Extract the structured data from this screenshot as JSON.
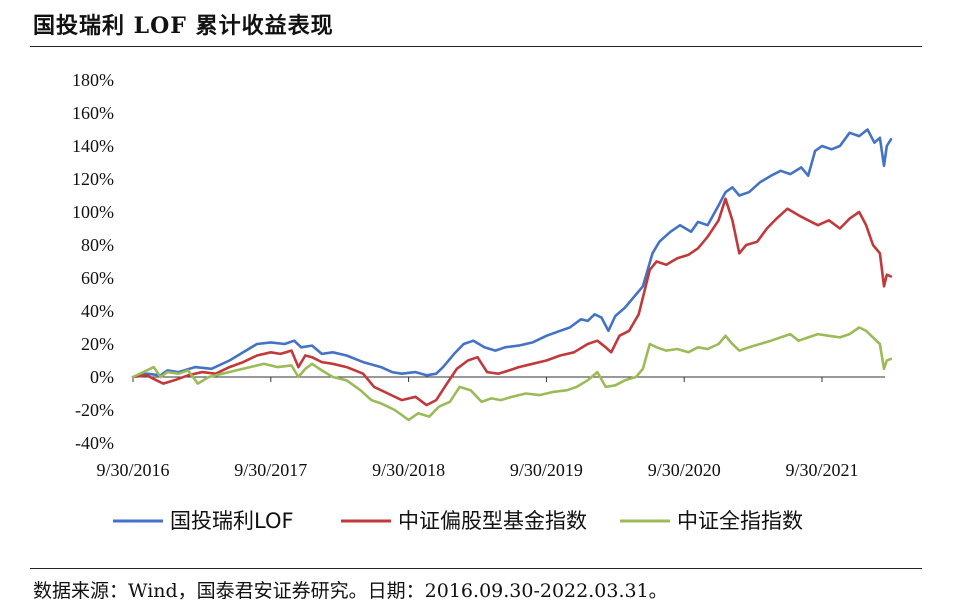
{
  "title": "国投瑞利 LOF 累计收益表现",
  "source_note": "数据来源：Wind，国泰君安证券研究。日期：2016.09.30-2022.03.31。",
  "chart_data": {
    "type": "line",
    "y_ticks": [
      "180%",
      "160%",
      "140%",
      "120%",
      "100%",
      "80%",
      "60%",
      "40%",
      "20%",
      "0%",
      "-20%",
      "-40%"
    ],
    "ylim": [
      -40,
      180
    ],
    "x_ticks": [
      "9/30/2016",
      "9/30/2017",
      "9/30/2018",
      "9/30/2019",
      "9/30/2020",
      "9/30/2021"
    ],
    "x_tick_years": [
      2016.75,
      2017.75,
      2018.75,
      2019.75,
      2020.75,
      2021.75
    ],
    "xlim": [
      2016.75,
      2022.25
    ],
    "grid": false,
    "legend_position": "bottom",
    "series": [
      {
        "name": "国投瑞利LOF",
        "color": "#4472C4",
        "points": [
          [
            2016.75,
            0
          ],
          [
            2016.85,
            2
          ],
          [
            2016.95,
            1
          ],
          [
            2017.0,
            4
          ],
          [
            2017.08,
            3
          ],
          [
            2017.2,
            6
          ],
          [
            2017.32,
            5
          ],
          [
            2017.45,
            10
          ],
          [
            2017.55,
            15
          ],
          [
            2017.65,
            20
          ],
          [
            2017.75,
            21
          ],
          [
            2017.85,
            20
          ],
          [
            2017.92,
            22
          ],
          [
            2017.97,
            18
          ],
          [
            2018.05,
            19
          ],
          [
            2018.12,
            14
          ],
          [
            2018.2,
            15
          ],
          [
            2018.3,
            13
          ],
          [
            2018.42,
            9
          ],
          [
            2018.55,
            6
          ],
          [
            2018.63,
            3
          ],
          [
            2018.7,
            2
          ],
          [
            2018.8,
            3
          ],
          [
            2018.88,
            1
          ],
          [
            2018.95,
            2
          ],
          [
            2019.0,
            6
          ],
          [
            2019.08,
            14
          ],
          [
            2019.15,
            20
          ],
          [
            2019.22,
            22
          ],
          [
            2019.3,
            18
          ],
          [
            2019.38,
            16
          ],
          [
            2019.45,
            18
          ],
          [
            2019.55,
            19
          ],
          [
            2019.65,
            21
          ],
          [
            2019.75,
            25
          ],
          [
            2019.85,
            28
          ],
          [
            2019.92,
            30
          ],
          [
            2020.0,
            35
          ],
          [
            2020.05,
            34
          ],
          [
            2020.1,
            38
          ],
          [
            2020.15,
            36
          ],
          [
            2020.2,
            28
          ],
          [
            2020.25,
            37
          ],
          [
            2020.32,
            42
          ],
          [
            2020.4,
            50
          ],
          [
            2020.45,
            55
          ],
          [
            2020.52,
            75
          ],
          [
            2020.57,
            82
          ],
          [
            2020.65,
            88
          ],
          [
            2020.72,
            92
          ],
          [
            2020.8,
            88
          ],
          [
            2020.85,
            94
          ],
          [
            2020.92,
            92
          ],
          [
            2021.0,
            104
          ],
          [
            2021.05,
            112
          ],
          [
            2021.1,
            115
          ],
          [
            2021.15,
            110
          ],
          [
            2021.22,
            112
          ],
          [
            2021.3,
            118
          ],
          [
            2021.38,
            122
          ],
          [
            2021.45,
            125
          ],
          [
            2021.52,
            123
          ],
          [
            2021.6,
            127
          ],
          [
            2021.65,
            122
          ],
          [
            2021.7,
            137
          ],
          [
            2021.75,
            140
          ],
          [
            2021.82,
            138
          ],
          [
            2021.88,
            140
          ],
          [
            2021.95,
            148
          ],
          [
            2022.02,
            146
          ],
          [
            2022.08,
            150
          ],
          [
            2022.13,
            142
          ],
          [
            2022.17,
            145
          ],
          [
            2022.2,
            128
          ],
          [
            2022.22,
            140
          ],
          [
            2022.25,
            144
          ]
        ]
      },
      {
        "name": "中证偏股型基金指数",
        "color": "#C0393B",
        "points": [
          [
            2016.75,
            0
          ],
          [
            2016.85,
            1
          ],
          [
            2016.92,
            -2
          ],
          [
            2016.97,
            -4
          ],
          [
            2017.05,
            -2
          ],
          [
            2017.15,
            1
          ],
          [
            2017.25,
            3
          ],
          [
            2017.35,
            2
          ],
          [
            2017.45,
            6
          ],
          [
            2017.55,
            9
          ],
          [
            2017.65,
            13
          ],
          [
            2017.75,
            15
          ],
          [
            2017.82,
            14
          ],
          [
            2017.9,
            16
          ],
          [
            2017.95,
            6
          ],
          [
            2018.0,
            13
          ],
          [
            2018.05,
            12
          ],
          [
            2018.12,
            9
          ],
          [
            2018.2,
            8
          ],
          [
            2018.3,
            6
          ],
          [
            2018.42,
            2
          ],
          [
            2018.5,
            -6
          ],
          [
            2018.6,
            -10
          ],
          [
            2018.7,
            -14
          ],
          [
            2018.8,
            -12
          ],
          [
            2018.88,
            -17
          ],
          [
            2018.95,
            -14
          ],
          [
            2019.02,
            -5
          ],
          [
            2019.1,
            5
          ],
          [
            2019.18,
            10
          ],
          [
            2019.25,
            12
          ],
          [
            2019.32,
            3
          ],
          [
            2019.4,
            2
          ],
          [
            2019.48,
            4
          ],
          [
            2019.55,
            6
          ],
          [
            2019.65,
            8
          ],
          [
            2019.75,
            10
          ],
          [
            2019.85,
            13
          ],
          [
            2019.95,
            15
          ],
          [
            2020.05,
            20
          ],
          [
            2020.12,
            22
          ],
          [
            2020.18,
            18
          ],
          [
            2020.22,
            15
          ],
          [
            2020.28,
            25
          ],
          [
            2020.35,
            28
          ],
          [
            2020.42,
            38
          ],
          [
            2020.5,
            65
          ],
          [
            2020.55,
            70
          ],
          [
            2020.62,
            68
          ],
          [
            2020.7,
            72
          ],
          [
            2020.78,
            74
          ],
          [
            2020.85,
            78
          ],
          [
            2020.92,
            85
          ],
          [
            2021.0,
            95
          ],
          [
            2021.05,
            108
          ],
          [
            2021.1,
            95
          ],
          [
            2021.15,
            75
          ],
          [
            2021.2,
            80
          ],
          [
            2021.28,
            82
          ],
          [
            2021.35,
            90
          ],
          [
            2021.42,
            96
          ],
          [
            2021.5,
            102
          ],
          [
            2021.58,
            98
          ],
          [
            2021.65,
            95
          ],
          [
            2021.72,
            92
          ],
          [
            2021.8,
            95
          ],
          [
            2021.88,
            90
          ],
          [
            2021.95,
            96
          ],
          [
            2022.02,
            100
          ],
          [
            2022.07,
            92
          ],
          [
            2022.12,
            80
          ],
          [
            2022.17,
            75
          ],
          [
            2022.2,
            55
          ],
          [
            2022.22,
            62
          ],
          [
            2022.25,
            61
          ]
        ]
      },
      {
        "name": "中证全指指数",
        "color": "#9BBB59",
        "points": [
          [
            2016.75,
            0
          ],
          [
            2016.85,
            4
          ],
          [
            2016.9,
            6
          ],
          [
            2016.95,
            0
          ],
          [
            2017.0,
            3
          ],
          [
            2017.08,
            2
          ],
          [
            2017.15,
            4
          ],
          [
            2017.22,
            -4
          ],
          [
            2017.3,
            0
          ],
          [
            2017.4,
            2
          ],
          [
            2017.5,
            4
          ],
          [
            2017.6,
            6
          ],
          [
            2017.7,
            8
          ],
          [
            2017.8,
            6
          ],
          [
            2017.9,
            7
          ],
          [
            2017.95,
            0
          ],
          [
            2018.0,
            5
          ],
          [
            2018.05,
            8
          ],
          [
            2018.12,
            4
          ],
          [
            2018.2,
            0
          ],
          [
            2018.3,
            -2
          ],
          [
            2018.4,
            -8
          ],
          [
            2018.48,
            -14
          ],
          [
            2018.55,
            -16
          ],
          [
            2018.65,
            -20
          ],
          [
            2018.75,
            -26
          ],
          [
            2018.82,
            -22
          ],
          [
            2018.9,
            -24
          ],
          [
            2018.97,
            -18
          ],
          [
            2019.05,
            -15
          ],
          [
            2019.12,
            -6
          ],
          [
            2019.2,
            -8
          ],
          [
            2019.28,
            -15
          ],
          [
            2019.35,
            -13
          ],
          [
            2019.42,
            -14
          ],
          [
            2019.5,
            -12
          ],
          [
            2019.6,
            -10
          ],
          [
            2019.7,
            -11
          ],
          [
            2019.8,
            -9
          ],
          [
            2019.9,
            -8
          ],
          [
            2019.97,
            -6
          ],
          [
            2020.05,
            -2
          ],
          [
            2020.12,
            3
          ],
          [
            2020.18,
            -6
          ],
          [
            2020.25,
            -5
          ],
          [
            2020.32,
            -2
          ],
          [
            2020.4,
            0
          ],
          [
            2020.45,
            5
          ],
          [
            2020.5,
            20
          ],
          [
            2020.55,
            18
          ],
          [
            2020.62,
            16
          ],
          [
            2020.7,
            17
          ],
          [
            2020.78,
            15
          ],
          [
            2020.85,
            18
          ],
          [
            2020.92,
            17
          ],
          [
            2021.0,
            20
          ],
          [
            2021.05,
            25
          ],
          [
            2021.1,
            20
          ],
          [
            2021.15,
            16
          ],
          [
            2021.22,
            18
          ],
          [
            2021.3,
            20
          ],
          [
            2021.38,
            22
          ],
          [
            2021.45,
            24
          ],
          [
            2021.52,
            26
          ],
          [
            2021.58,
            22
          ],
          [
            2021.65,
            24
          ],
          [
            2021.72,
            26
          ],
          [
            2021.8,
            25
          ],
          [
            2021.88,
            24
          ],
          [
            2021.95,
            26
          ],
          [
            2022.02,
            30
          ],
          [
            2022.07,
            28
          ],
          [
            2022.12,
            24
          ],
          [
            2022.17,
            20
          ],
          [
            2022.2,
            5
          ],
          [
            2022.22,
            10
          ],
          [
            2022.25,
            11
          ]
        ]
      }
    ]
  }
}
